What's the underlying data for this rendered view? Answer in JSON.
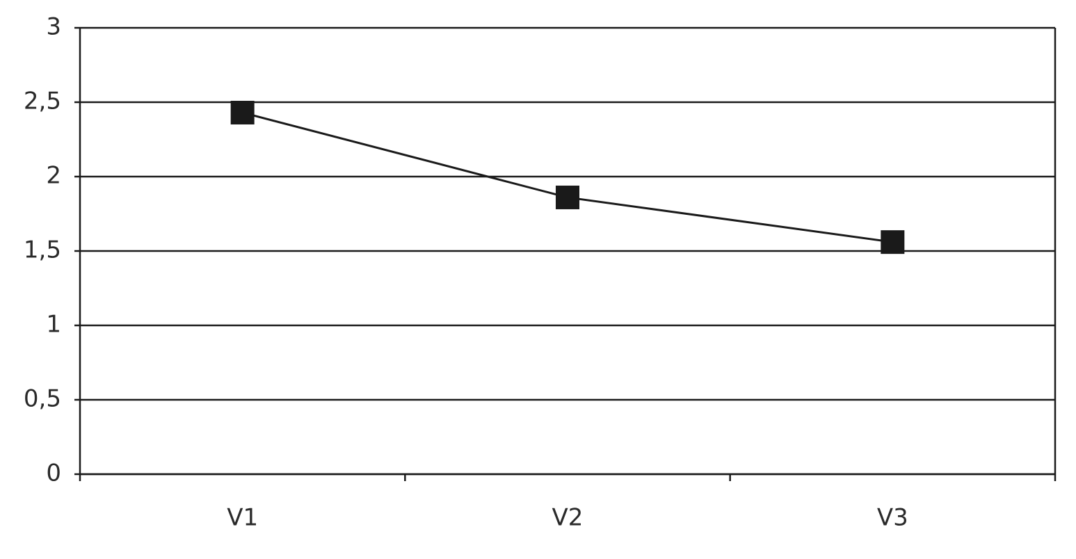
{
  "chart_data": {
    "type": "line",
    "categories": [
      "V1",
      "V2",
      "V3"
    ],
    "values": [
      2.43,
      1.86,
      1.56
    ],
    "color": "#1a1a1a",
    "marker": "square",
    "ylim": [
      0,
      3
    ],
    "yticks": [
      0,
      {
        "value": 0.5,
        "label": "0,5"
      },
      1,
      {
        "value": 1.5,
        "label": "1,5"
      },
      2,
      {
        "value": 2.5,
        "label": "2,5"
      },
      3
    ],
    "grid": true
  }
}
